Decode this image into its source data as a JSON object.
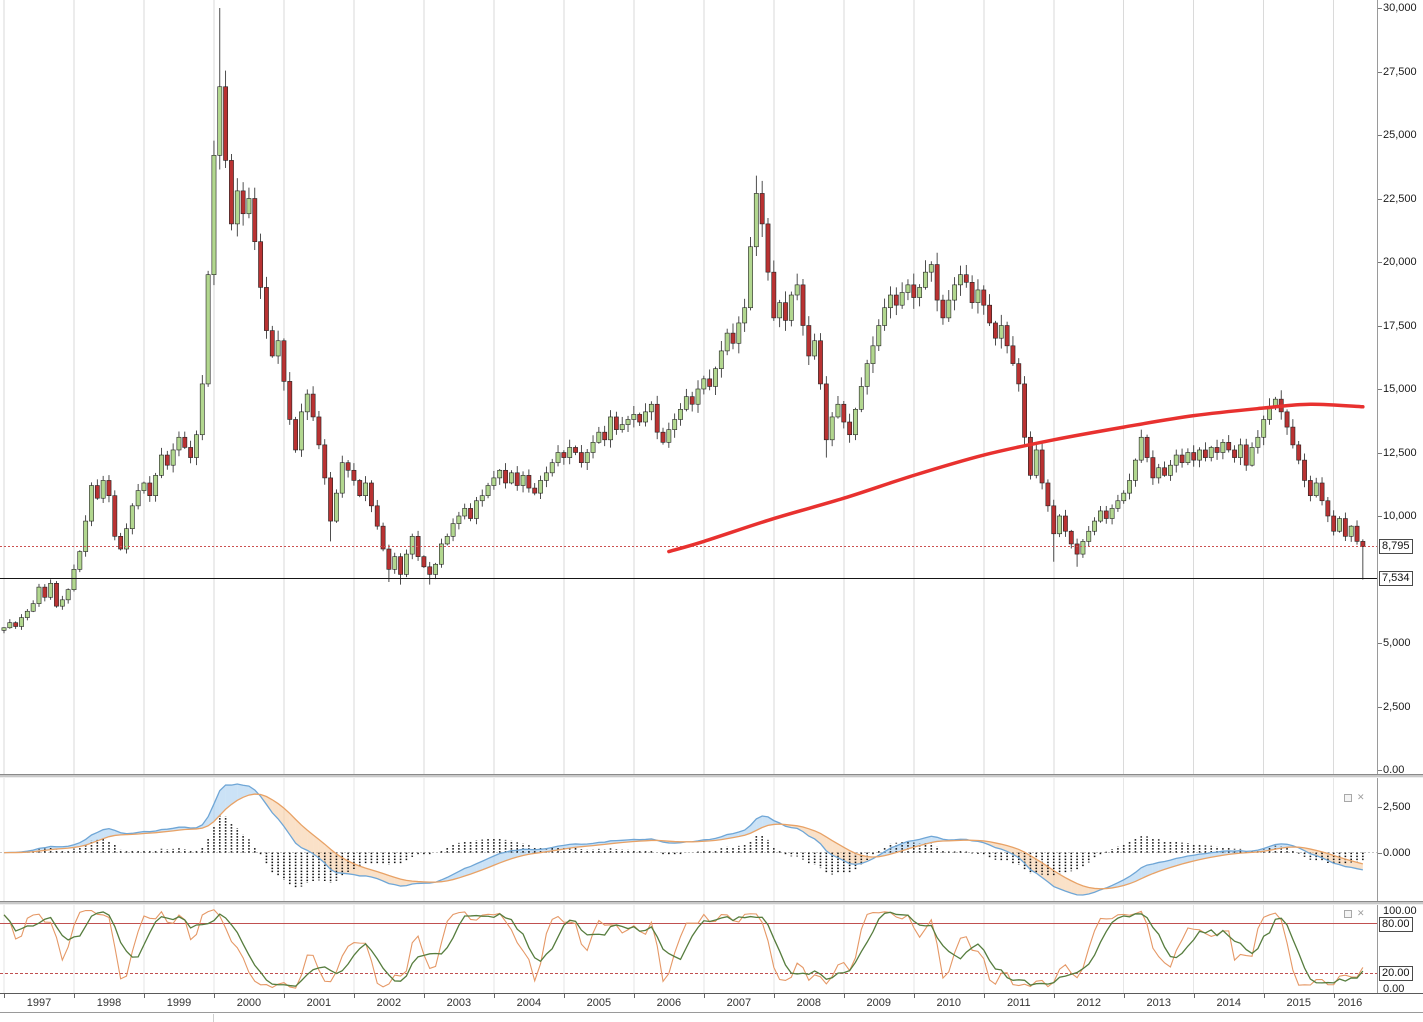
{
  "window": {
    "background": "#ffffff",
    "grid_color": "#dadada"
  },
  "main_chart": {
    "scale_labels": [
      {
        "label": "30,000",
        "value": 30000
      },
      {
        "label": "27,500",
        "value": 27500
      },
      {
        "label": "25,000",
        "value": 25000
      },
      {
        "label": "22,500",
        "value": 22500
      },
      {
        "label": "20,000",
        "value": 20000
      },
      {
        "label": "17,500",
        "value": 17500
      },
      {
        "label": "15,000",
        "value": 15000
      },
      {
        "label": "12,500",
        "value": 12500
      },
      {
        "label": "10,000",
        "value": 10000
      },
      {
        "label": "5,000",
        "value": 5000
      },
      {
        "label": "2,500",
        "value": 2500
      },
      {
        "label": "0.00",
        "value": 0
      }
    ]
  },
  "macd_panel": {
    "scale_labels": [
      {
        "label": "2,500",
        "value": 2500
      },
      {
        "label": "0.000",
        "value": 0
      }
    ]
  },
  "stoch_panel": {
    "scale_labels": [
      {
        "label": "100.00",
        "value": 100,
        "box": false
      },
      {
        "label": "80.00",
        "value": 80,
        "box": true
      },
      {
        "label": "20.00",
        "value": 20,
        "box": true
      },
      {
        "label": "0.00",
        "value": 0,
        "box": false
      }
    ]
  },
  "time_axis": {
    "years": [
      "1997",
      "1998",
      "1999",
      "2000",
      "2001",
      "2002",
      "2003",
      "2004",
      "2005",
      "2006",
      "2007",
      "2008",
      "2009",
      "2010",
      "2011",
      "2012",
      "2013",
      "2014",
      "2015",
      "2016"
    ]
  },
  "chart_data": {
    "type": "candlestick",
    "timeframe": "monthly",
    "start": "1997-01",
    "end": "2016-06",
    "ylim": [
      0,
      30000
    ],
    "grid": "vertical-year-lines",
    "first_open": 5500,
    "up_color": "#b2d78f",
    "down_color": "#b93232",
    "outline_color": "#222222",
    "closes": [
      5600,
      5800,
      5650,
      6000,
      6250,
      6550,
      7200,
      6800,
      7350,
      6450,
      6700,
      7100,
      7900,
      8600,
      9800,
      11200,
      10700,
      11400,
      10800,
      9200,
      8700,
      9500,
      10400,
      11000,
      11300,
      10800,
      11600,
      12400,
      12000,
      12600,
      13100,
      12700,
      12300,
      13200,
      15200,
      19500,
      24200,
      26900,
      24000,
      21500,
      22800,
      21900,
      22500,
      20800,
      19000,
      17300,
      16300,
      16900,
      15300,
      13800,
      12600,
      14100,
      14800,
      13900,
      12800,
      11500,
      9800,
      10900,
      12100,
      11800,
      11400,
      10800,
      11300,
      10400,
      9600,
      8700,
      7900,
      8400,
      7700,
      8500,
      9200,
      8400,
      8000,
      7700,
      8100,
      8900,
      9200,
      9700,
      10000,
      10300,
      9900,
      10600,
      10800,
      11200,
      11500,
      11800,
      11300,
      11700,
      11200,
      11600,
      11100,
      10900,
      11400,
      11700,
      12100,
      12500,
      12300,
      12700,
      12500,
      12100,
      12500,
      12900,
      13300,
      13000,
      13900,
      13400,
      13600,
      13800,
      14000,
      13700,
      14100,
      14400,
      13300,
      12900,
      13400,
      13800,
      14200,
      14700,
      14400,
      15000,
      15400,
      15100,
      15800,
      16500,
      17200,
      16800,
      17600,
      18200,
      20600,
      22700,
      21500,
      19600,
      17800,
      18400,
      17700,
      18700,
      19100,
      17500,
      16300,
      16900,
      15200,
      13000,
      13900,
      14400,
      13700,
      13200,
      14200,
      15100,
      16000,
      16700,
      17500,
      18200,
      18700,
      18300,
      18800,
      19100,
      18600,
      19000,
      19600,
      19900,
      18500,
      17800,
      18500,
      19100,
      19500,
      19200,
      18400,
      18900,
      18300,
      17600,
      17000,
      17500,
      16700,
      16000,
      15200,
      13100,
      11600,
      12600,
      11300,
      10400,
      9300,
      10000,
      9400,
      8900,
      8500,
      9000,
      9400,
      9800,
      10200,
      9900,
      10300,
      10600,
      10900,
      11400,
      12200,
      13100,
      12300,
      11500,
      11900,
      11600,
      12000,
      12400,
      12100,
      12500,
      12200,
      12600,
      12300,
      12700,
      12500,
      12900,
      12600,
      12300,
      12800,
      12000,
      12700,
      13100,
      13800,
      14300,
      14600,
      14100,
      13500,
      12800,
      12200,
      11400,
      10800,
      11300,
      10600,
      10000,
      9400,
      9900,
      9200,
      9600,
      9000,
      8795
    ],
    "wick_overrides": {
      "37": {
        "high": 30000
      },
      "56": {
        "low": 9000
      },
      "66": {
        "low": 7400
      },
      "68": {
        "low": 7300
      },
      "73": {
        "low": 7300
      },
      "129": {
        "high": 23400
      },
      "141": {
        "low": 12300
      },
      "180": {
        "low": 8200
      },
      "184": {
        "low": 8000
      },
      "195": {
        "high": 13400
      },
      "233": {
        "low": 7500
      }
    },
    "moving_average": {
      "label": "long-term-moving-average",
      "color": "#e8312f",
      "points": [
        [
          114,
          8600
        ],
        [
          120,
          9000
        ],
        [
          132,
          9900
        ],
        [
          144,
          10700
        ],
        [
          156,
          11600
        ],
        [
          168,
          12400
        ],
        [
          180,
          13000
        ],
        [
          192,
          13500
        ],
        [
          204,
          13950
        ],
        [
          216,
          14250
        ],
        [
          224,
          14400
        ],
        [
          233,
          14300
        ]
      ]
    },
    "horizontal_lines": [
      {
        "value": 8795,
        "label": "8,795",
        "style": "dotted",
        "color": "#cc5050"
      },
      {
        "value": 7534,
        "label": "7,534",
        "style": "solid",
        "color": "#151515"
      }
    ],
    "indicators": [
      {
        "type": "macd",
        "panel": 2,
        "params": {
          "fast": 12,
          "slow": 26,
          "signal": 9
        },
        "colors": {
          "macd_line": "#6fa6d6",
          "signal_line": "#e8a266",
          "fill_above": "rgba(140,190,235,0.45)",
          "fill_below": "rgba(246,196,146,0.5)",
          "histogram": "#111111"
        },
        "scale_values": [
          2500,
          0
        ]
      },
      {
        "type": "stochastic",
        "panel": 3,
        "params": {
          "period": 6,
          "k_smoothing": 2,
          "d_smoothing": 5
        },
        "colors": {
          "k_line": "#e59866",
          "d_line": "#567d3e",
          "level_line": "#c05050"
        },
        "range": [
          0,
          100
        ],
        "levels": [
          80,
          20
        ]
      }
    ]
  }
}
